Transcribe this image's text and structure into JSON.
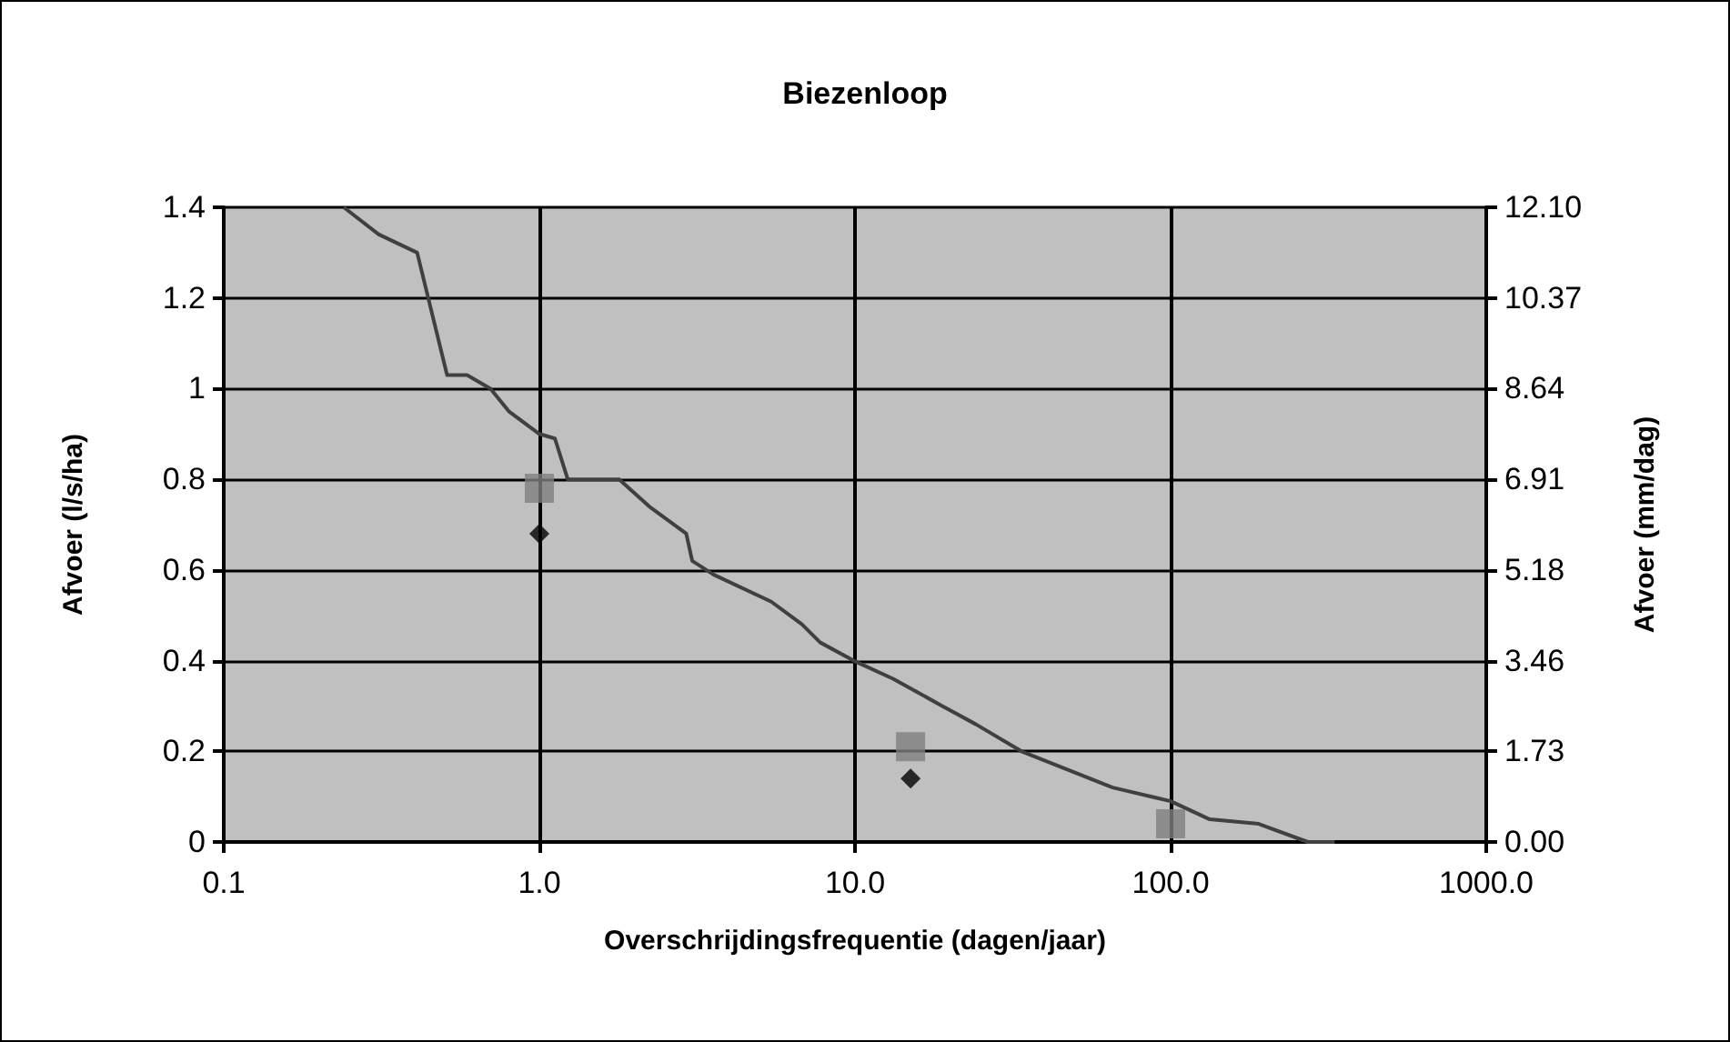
{
  "chart_data": {
    "type": "line",
    "title": "Biezenloop",
    "xlabel": "Overschrijdingsfrequentie (dagen/jaar)",
    "ylabel": "Afvoer (l/s/ha)",
    "y2label": "Afvoer (mm/dag)",
    "log": "x",
    "grid": true,
    "xlim": [
      0.1,
      1000
    ],
    "xticks": [
      0.1,
      {
        "value": 1,
        "label": "1.0"
      },
      {
        "value": 10,
        "label": "10.0"
      },
      {
        "value": 100,
        "label": "100.0"
      },
      {
        "value": 1000,
        "label": "1000.0"
      }
    ],
    "ylim": [
      0,
      1.4
    ],
    "yticks": [
      0,
      0.2,
      0.4,
      0.6,
      0.8,
      1,
      1.2,
      1.4
    ],
    "y2lim": [
      0,
      12.096
    ],
    "y2ticks": [
      {
        "value": 0,
        "label": "0.00"
      },
      {
        "value": 1.728,
        "label": "1.73"
      },
      {
        "value": 3.456,
        "label": "3.46"
      },
      {
        "value": 5.184,
        "label": "5.18"
      },
      {
        "value": 6.912,
        "label": "6.91"
      },
      {
        "value": 8.64,
        "label": "8.64"
      },
      {
        "value": 10.368,
        "label": "10.37"
      },
      {
        "value": 12.096,
        "label": "12.10"
      }
    ],
    "series": [
      {
        "color": "#404040",
        "marker": "none",
        "x": [
          0.24,
          0.31,
          0.41,
          0.51,
          0.59,
          0.7,
          0.8,
          1.0,
          1.12,
          1.23,
          1.64,
          1.79,
          2.23,
          2.92,
          3.05,
          3.56,
          5.43,
          6.79,
          7.76,
          9.9,
          13.2,
          18.9,
          24.1,
          33.7,
          65.5,
          100,
          133,
          190,
          272,
          331
        ],
        "values": [
          1.4,
          1.34,
          1.3,
          1.03,
          1.03,
          1.0,
          0.95,
          0.9,
          0.89,
          0.8,
          0.8,
          0.8,
          0.74,
          0.68,
          0.62,
          0.59,
          0.53,
          0.48,
          0.44,
          0.4,
          0.36,
          0.3,
          0.26,
          0.2,
          0.12,
          0.09,
          0.05,
          0.04,
          0.0,
          0.0
        ]
      },
      {
        "type": "scatter",
        "color": "#808080",
        "marker": "square",
        "x": [
          1,
          15,
          100
        ],
        "values": [
          0.78,
          0.21,
          0.04
        ]
      },
      {
        "type": "scatter",
        "color": "#000000",
        "marker": "diamond",
        "x": [
          1,
          15
        ],
        "values": [
          0.68,
          0.14
        ]
      }
    ]
  }
}
